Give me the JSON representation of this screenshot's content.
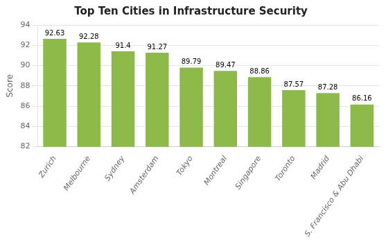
{
  "chart_data": {
    "type": "bar",
    "title": "Top Ten Cities in Infrastructure Security",
    "categories": [
      "Zurich",
      "Melbourne",
      "Sydney",
      "Amsterdam",
      "Tokyo",
      "Montreal",
      "Singapore",
      "Toronto",
      "Madrid",
      "S. Francisco & Abu Dhabi"
    ],
    "values": [
      92.63,
      92.28,
      91.4,
      91.27,
      89.79,
      89.47,
      88.86,
      87.57,
      87.28,
      86.16
    ],
    "color": "#8db84a",
    "ylabel": "Score",
    "ylim": [
      82,
      94
    ],
    "yticks": [
      82,
      84,
      86,
      88,
      90,
      92,
      94
    ],
    "grid": true,
    "data_labels": true
  }
}
